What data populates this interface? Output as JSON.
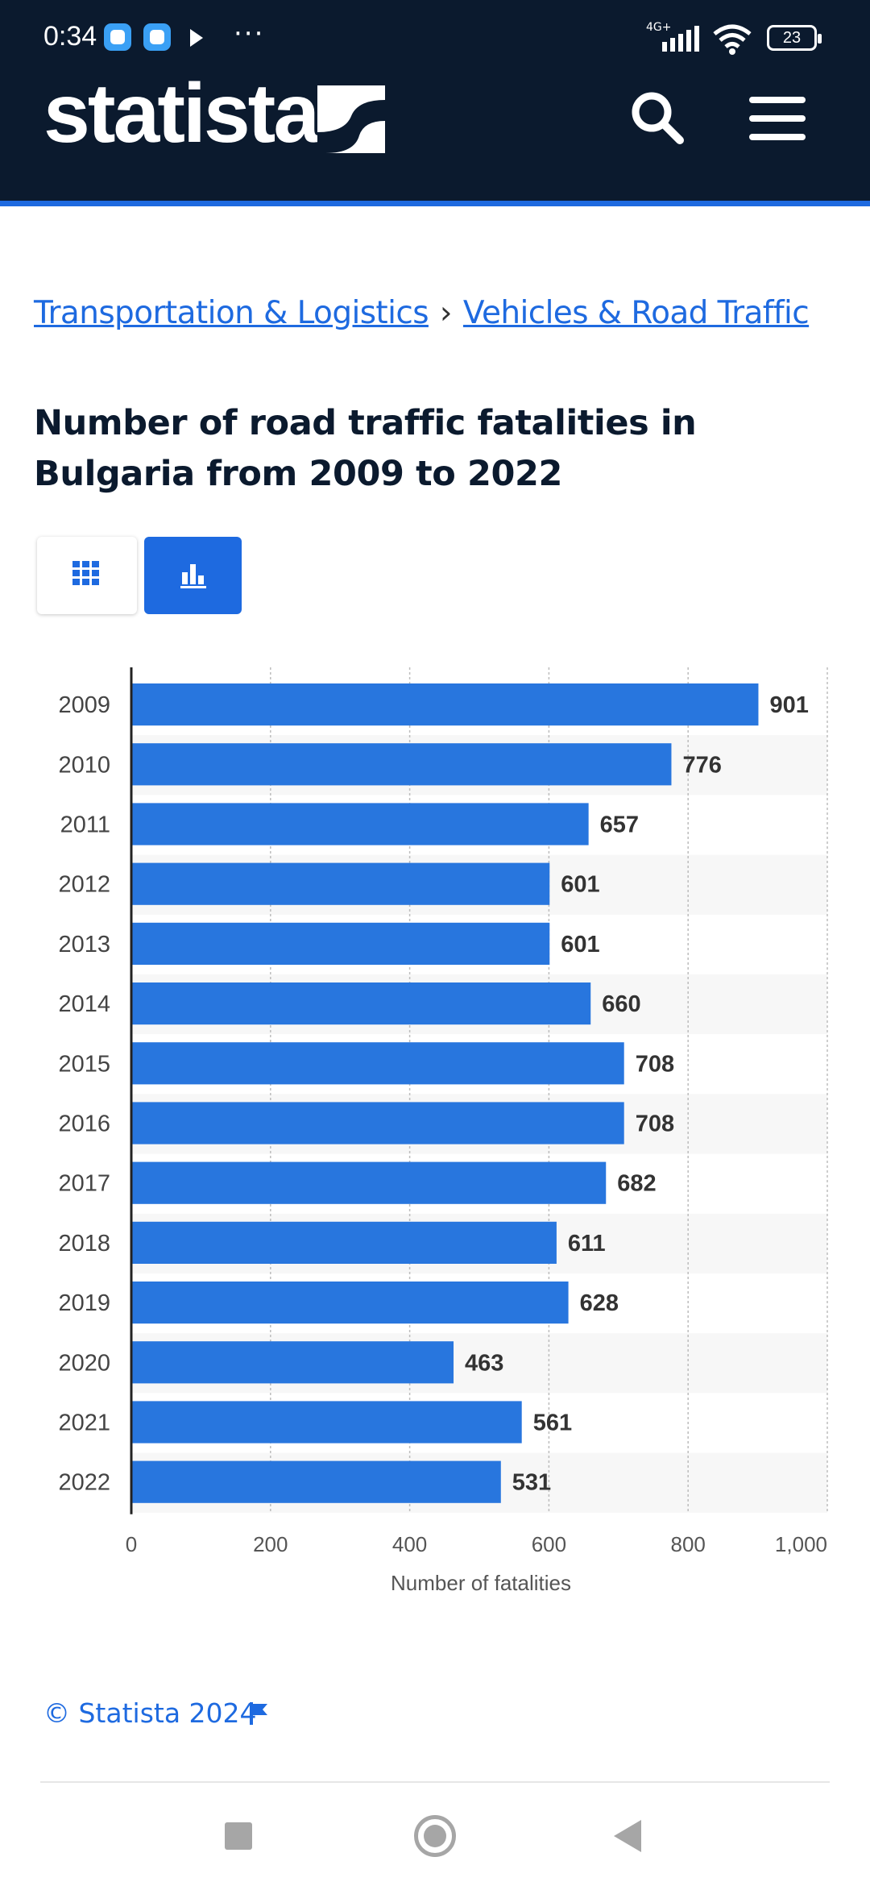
{
  "status_bar": {
    "time": "0:34",
    "network": "4G+",
    "battery": "23"
  },
  "header": {
    "logo_text": "statista",
    "colors": {
      "background": "#0b1a2e",
      "accent": "#1e6ae0"
    },
    "icons": [
      "statista-logo-icon",
      "search-icon",
      "menu-icon"
    ]
  },
  "breadcrumb": {
    "items": [
      "Transportation & Logistics",
      "Vehicles & Road Traffic"
    ],
    "separator": "›"
  },
  "page": {
    "title": "Number of road traffic fatalities in Bulgaria from 2009 to 2022"
  },
  "view_toggle": {
    "options": [
      "table-view",
      "chart-view"
    ],
    "selected": "chart-view"
  },
  "chart_data": {
    "type": "bar",
    "orientation": "horizontal",
    "categories": [
      "2009",
      "2010",
      "2011",
      "2012",
      "2013",
      "2014",
      "2015",
      "2016",
      "2017",
      "2018",
      "2019",
      "2020",
      "2021",
      "2022"
    ],
    "values": [
      901,
      776,
      657,
      601,
      601,
      660,
      708,
      708,
      682,
      611,
      628,
      463,
      561,
      531
    ],
    "value_labels": [
      "901",
      "776",
      "657",
      "601",
      "601",
      "660",
      "708",
      "708",
      "682",
      "611",
      "628",
      "463",
      "561",
      "531"
    ],
    "xlabel": "Number of fatalities",
    "ylabel": "",
    "xlim": [
      0,
      1000
    ],
    "ticks": [
      0,
      200,
      400,
      600,
      800,
      1000
    ],
    "tick_labels": [
      "0",
      "200",
      "400",
      "600",
      "800",
      "1,000"
    ],
    "grid": true,
    "bar_color": "#2876de"
  },
  "footer": {
    "copyright": "© Statista 2024"
  }
}
